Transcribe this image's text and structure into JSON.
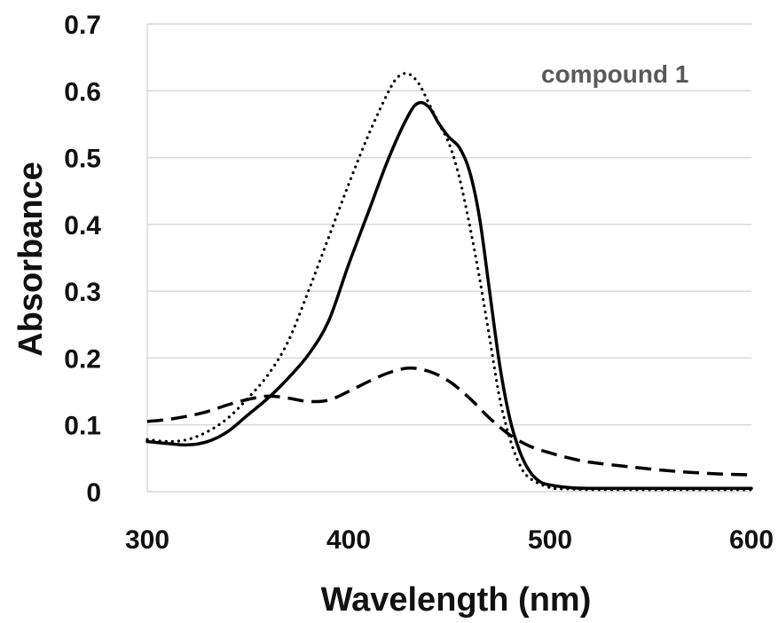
{
  "chart_data": {
    "type": "line",
    "xlabel": "Wavelength (nm)",
    "ylabel": "Absorbance",
    "annotation": "compound 1",
    "xlim": [
      300,
      600
    ],
    "ylim": [
      0,
      0.7
    ],
    "xticks": [
      "300",
      "400",
      "500",
      "600"
    ],
    "yticks": [
      "0",
      "0.1",
      "0.2",
      "0.3",
      "0.4",
      "0.5",
      "0.6",
      "0.7"
    ],
    "grid": "horizontal",
    "legend": "none",
    "series": [
      {
        "style": "solid",
        "x": [
          300,
          310,
          320,
          330,
          340,
          350,
          360,
          370,
          380,
          390,
          400,
          410,
          420,
          430,
          435,
          440,
          445,
          450,
          455,
          460,
          465,
          470,
          475,
          480,
          485,
          490,
          495,
          500,
          510,
          520,
          540,
          560,
          580,
          600
        ],
        "y": [
          0.075,
          0.072,
          0.07,
          0.075,
          0.09,
          0.115,
          0.14,
          0.17,
          0.205,
          0.255,
          0.34,
          0.42,
          0.5,
          0.565,
          0.582,
          0.575,
          0.55,
          0.53,
          0.515,
          0.48,
          0.41,
          0.3,
          0.19,
          0.11,
          0.06,
          0.03,
          0.015,
          0.01,
          0.006,
          0.005,
          0.005,
          0.005,
          0.005,
          0.005
        ]
      },
      {
        "style": "dotted",
        "x": [
          300,
          310,
          320,
          330,
          340,
          350,
          360,
          370,
          380,
          390,
          400,
          410,
          420,
          425,
          430,
          435,
          440,
          445,
          450,
          455,
          460,
          465,
          470,
          475,
          480,
          485,
          490,
          500,
          510,
          520,
          540,
          560,
          580,
          600
        ],
        "y": [
          0.078,
          0.075,
          0.078,
          0.09,
          0.11,
          0.14,
          0.175,
          0.225,
          0.3,
          0.38,
          0.46,
          0.535,
          0.6,
          0.622,
          0.625,
          0.61,
          0.58,
          0.55,
          0.52,
          0.47,
          0.4,
          0.32,
          0.23,
          0.14,
          0.08,
          0.04,
          0.02,
          0.006,
          0.004,
          0.003,
          0.003,
          0.003,
          0.003,
          0.003
        ]
      },
      {
        "style": "dashed",
        "x": [
          300,
          310,
          320,
          330,
          340,
          350,
          360,
          370,
          380,
          390,
          400,
          410,
          420,
          430,
          440,
          450,
          460,
          470,
          480,
          490,
          500,
          510,
          520,
          540,
          560,
          580,
          600
        ],
        "y": [
          0.105,
          0.108,
          0.113,
          0.12,
          0.13,
          0.138,
          0.143,
          0.14,
          0.135,
          0.137,
          0.15,
          0.165,
          0.178,
          0.185,
          0.18,
          0.165,
          0.14,
          0.11,
          0.085,
          0.068,
          0.058,
          0.05,
          0.044,
          0.037,
          0.031,
          0.027,
          0.025
        ]
      }
    ]
  }
}
